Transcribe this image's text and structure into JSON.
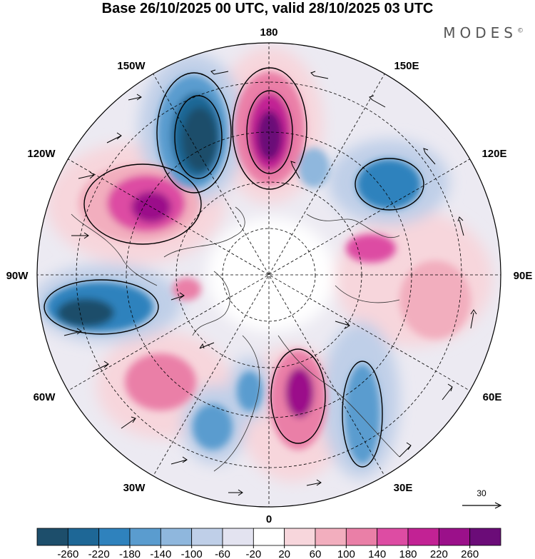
{
  "title": "Base 26/10/2025 00 UTC, valid 28/10/2025 03 UTC",
  "brand": "MODES",
  "brand_mark": "©",
  "map_labels": {
    "n180": "180",
    "w150": "150W",
    "e150": "150E",
    "w120": "120W",
    "e120": "120E",
    "w90": "90W",
    "e90": "90E",
    "w60": "60W",
    "e60": "60E",
    "w30": "30W",
    "e30": "30E",
    "s0": "0"
  },
  "reference_vector": "30",
  "colorbar": {
    "ticks": [
      "-260",
      "-220",
      "-180",
      "-140",
      "-100",
      "-60",
      "-20",
      "20",
      "60",
      "100",
      "140",
      "180",
      "220",
      "260"
    ],
    "colors": [
      "#1d4e6b",
      "#1e6796",
      "#2f82bd",
      "#5a9ccf",
      "#8fb7dd",
      "#bfcfe8",
      "#e3e3f0",
      "#ffffff",
      "#f7d6dc",
      "#f2aebe",
      "#ea7fa7",
      "#dd4ca3",
      "#c22294",
      "#9b108a",
      "#6b0c78"
    ]
  }
}
